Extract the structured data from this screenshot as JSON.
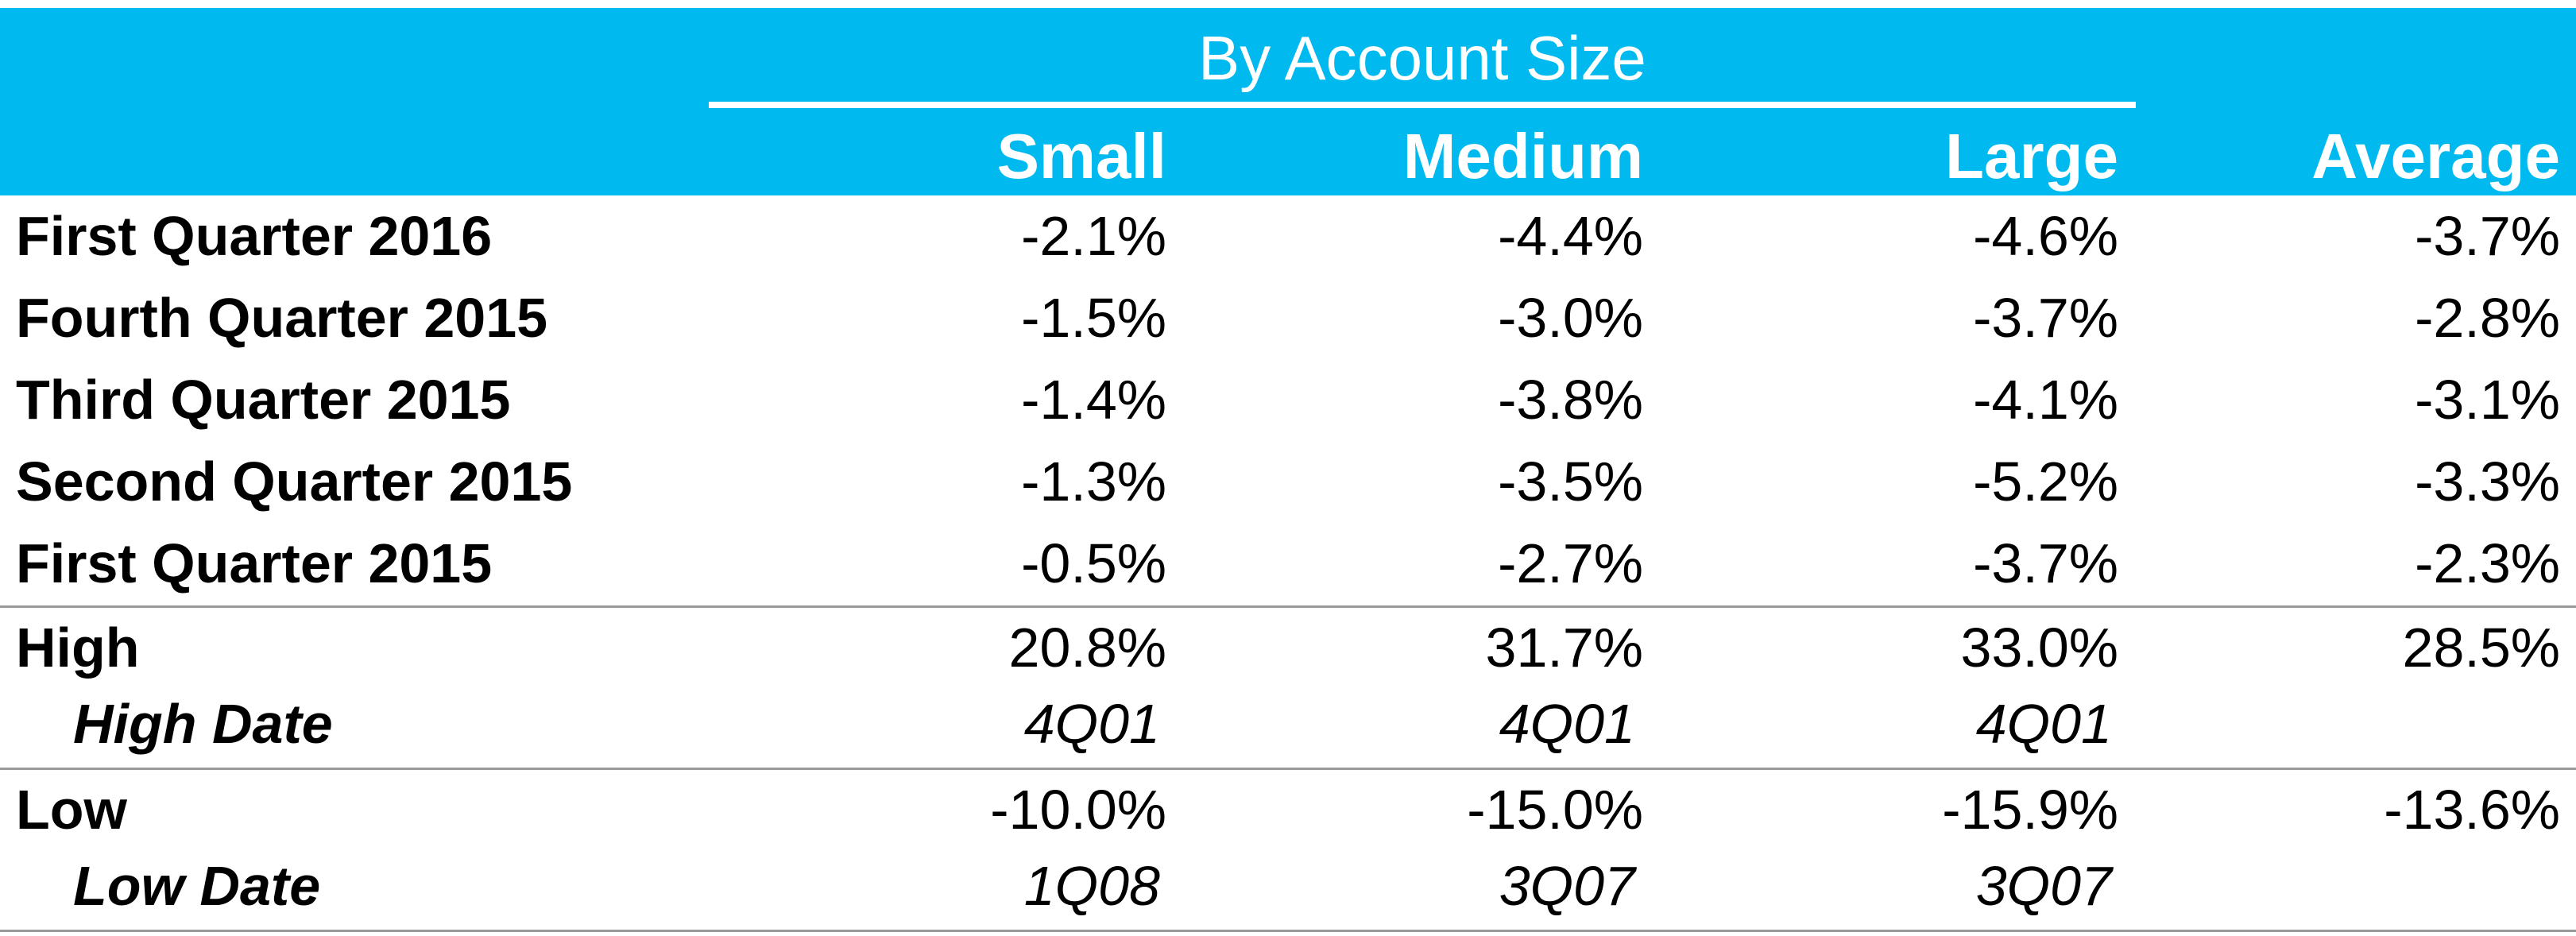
{
  "colors": {
    "header_background": "#00B9EF",
    "header_text": "#FFFFFF",
    "body_text": "#000000",
    "rule": "#9A9A9A"
  },
  "header": {
    "group_title": "By Account Size",
    "columns": [
      "Small",
      "Medium",
      "Large",
      "Average"
    ]
  },
  "quarters": [
    {
      "label": "First Quarter 2016",
      "small": "-2.1%",
      "medium": "-4.4%",
      "large": "-4.6%",
      "average": "-3.7%"
    },
    {
      "label": "Fourth Quarter 2015",
      "small": "-1.5%",
      "medium": "-3.0%",
      "large": "-3.7%",
      "average": "-2.8%"
    },
    {
      "label": "Third Quarter 2015",
      "small": "-1.4%",
      "medium": "-3.8%",
      "large": "-4.1%",
      "average": "-3.1%"
    },
    {
      "label": "Second Quarter 2015",
      "small": "-1.3%",
      "medium": "-3.5%",
      "large": "-5.2%",
      "average": "-3.3%"
    },
    {
      "label": "First Quarter 2015",
      "small": "-0.5%",
      "medium": "-2.7%",
      "large": "-3.7%",
      "average": "-2.3%"
    }
  ],
  "high": {
    "label": "High",
    "small": "20.8%",
    "medium": "31.7%",
    "large": "33.0%",
    "average": "28.5%"
  },
  "high_date": {
    "label": "High Date",
    "small": "4Q01",
    "medium": "4Q01",
    "large": "4Q01"
  },
  "low": {
    "label": "Low",
    "small": "-10.0%",
    "medium": "-15.0%",
    "large": "-15.9%",
    "average": "-13.6%"
  },
  "low_date": {
    "label": "Low Date",
    "small": "1Q08",
    "medium": "3Q07",
    "large": "3Q07"
  }
}
